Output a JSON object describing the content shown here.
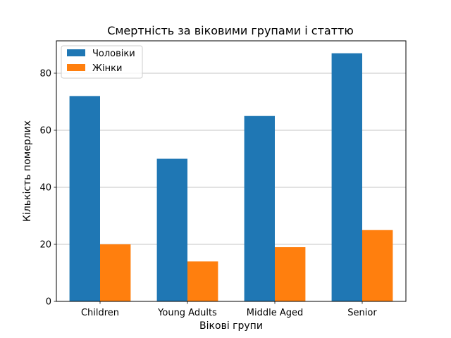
{
  "chart_data": {
    "type": "bar",
    "title": "Смертність за віковими групами і статтю",
    "xlabel": "Вікові групи",
    "ylabel": "Кількість померлих",
    "categories": [
      "Children",
      "Young Adults",
      "Middle Aged",
      "Senior"
    ],
    "series": [
      {
        "name": "Чоловіки",
        "values": [
          72,
          50,
          65,
          87
        ],
        "color": "#1f77b4"
      },
      {
        "name": "Жінки",
        "values": [
          20,
          14,
          19,
          25
        ],
        "color": "#ff7f0e"
      }
    ],
    "ylim": [
      0,
      91.35
    ],
    "yticks": [
      "0",
      "20",
      "40",
      "60",
      "80"
    ],
    "grid": "y",
    "legend_position": "top-left"
  }
}
